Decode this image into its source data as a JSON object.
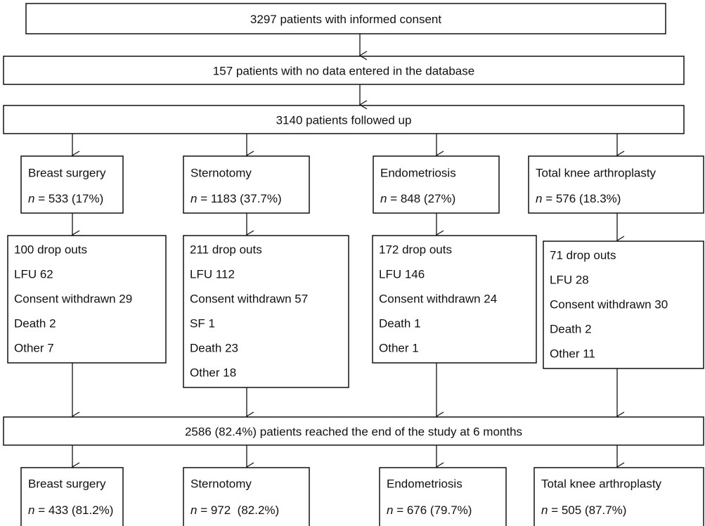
{
  "steps": [
    "3297 patients with informed consent",
    "157 patients with no data entered in the database",
    "3140 patients followed up"
  ],
  "groups": [
    {
      "name": "Breast surgery",
      "n": "n = 533 (17%)"
    },
    {
      "name": "Sternotomy",
      "n": "n = 1183 (37.7%)"
    },
    {
      "name": "Endometriosis",
      "n": "n = 848 (27%)"
    },
    {
      "name": "Total knee arthroplasty",
      "n": "n = 576 (18.3%)"
    }
  ],
  "dropouts": [
    [
      "100 drop outs",
      "LFU 62",
      "Consent withdrawn 29",
      "Death 2",
      "Other 7"
    ],
    [
      "211 drop outs",
      "LFU 112",
      "Consent withdrawn 57",
      "SF 1",
      "Death 23",
      "Other 18"
    ],
    [
      "172 drop outs",
      "LFU 146",
      "Consent withdrawn 24",
      "Death 1",
      "Other 1"
    ],
    [
      "71 drop outs",
      "LFU 28",
      "Consent withdrawn 30",
      "Death 2",
      "Other 11"
    ]
  ],
  "end": "2586 (82.4%) patients reached the end of the study at 6 months",
  "final": [
    {
      "name": "Breast surgery",
      "n": "n = 433 (81.2%)"
    },
    {
      "name": "Sternotomy",
      "n": "n = 972  (82.2%)"
    },
    {
      "name": "Endometriosis",
      "n": "n = 676 (79.7%)"
    },
    {
      "name": "Total knee arthroplasty",
      "n": "n = 505 (87.7%)"
    }
  ]
}
